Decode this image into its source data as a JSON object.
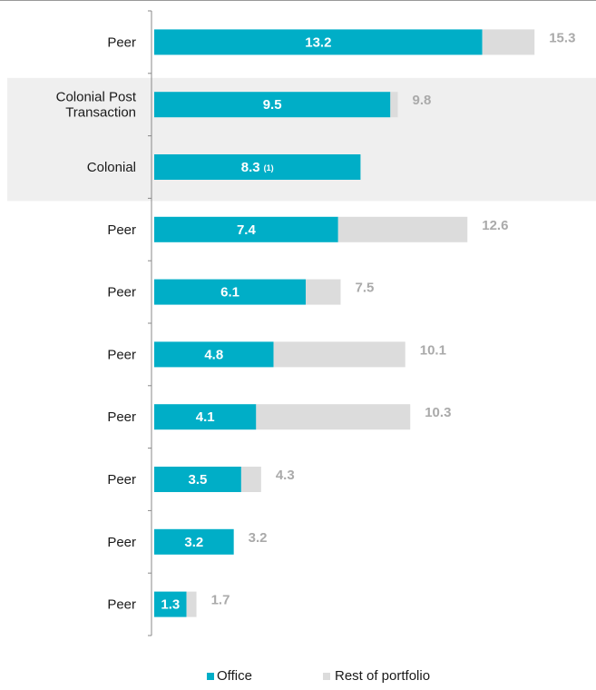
{
  "chart_data": {
    "type": "bar",
    "orientation": "horizontal",
    "stacked": true,
    "categories": [
      "Peer",
      "Colonial Post Transaction",
      "Colonial",
      "Peer",
      "Peer",
      "Peer",
      "Peer",
      "Peer",
      "Peer",
      "Peer"
    ],
    "category_display": [
      [
        "Peer"
      ],
      [
        "Colonial Post",
        "Transaction"
      ],
      [
        "Colonial"
      ],
      [
        "Peer"
      ],
      [
        "Peer"
      ],
      [
        "Peer"
      ],
      [
        "Peer"
      ],
      [
        "Peer"
      ],
      [
        "Peer"
      ],
      [
        "Peer"
      ]
    ],
    "highlighted_rows": [
      1,
      2
    ],
    "series": [
      {
        "name": "Office",
        "values": [
          13.2,
          9.5,
          8.3,
          7.4,
          6.1,
          4.8,
          4.1,
          3.5,
          3.2,
          1.3
        ],
        "color": "#00aec7"
      },
      {
        "name": "Rest of portfolio",
        "values": [
          2.1,
          0.3,
          0,
          5.2,
          1.4,
          5.3,
          6.2,
          0.8,
          0,
          0.4
        ],
        "color": "#dcdcdc"
      }
    ],
    "office_labels": [
      "13.2",
      "9.5",
      "8.3",
      "7.4",
      "6.1",
      "4.8",
      "4.1",
      "3.5",
      "3.2",
      "1.3"
    ],
    "office_label_notes": [
      "",
      "",
      "(1)",
      "",
      "",
      "",
      "",
      "",
      "",
      ""
    ],
    "total_labels": [
      "15.3",
      "9.8",
      "",
      "12.6",
      "7.5",
      "10.1",
      "10.3",
      "4.3",
      "3.2",
      "1.7"
    ],
    "xlim": [
      0,
      16
    ],
    "grid": false,
    "legend_position": "bottom",
    "colors": {
      "office": "#00aec7",
      "rest": "#dcdcdc",
      "highlight": "#efefef",
      "axis": "#888888",
      "total_text": "#aaaaaa"
    }
  }
}
